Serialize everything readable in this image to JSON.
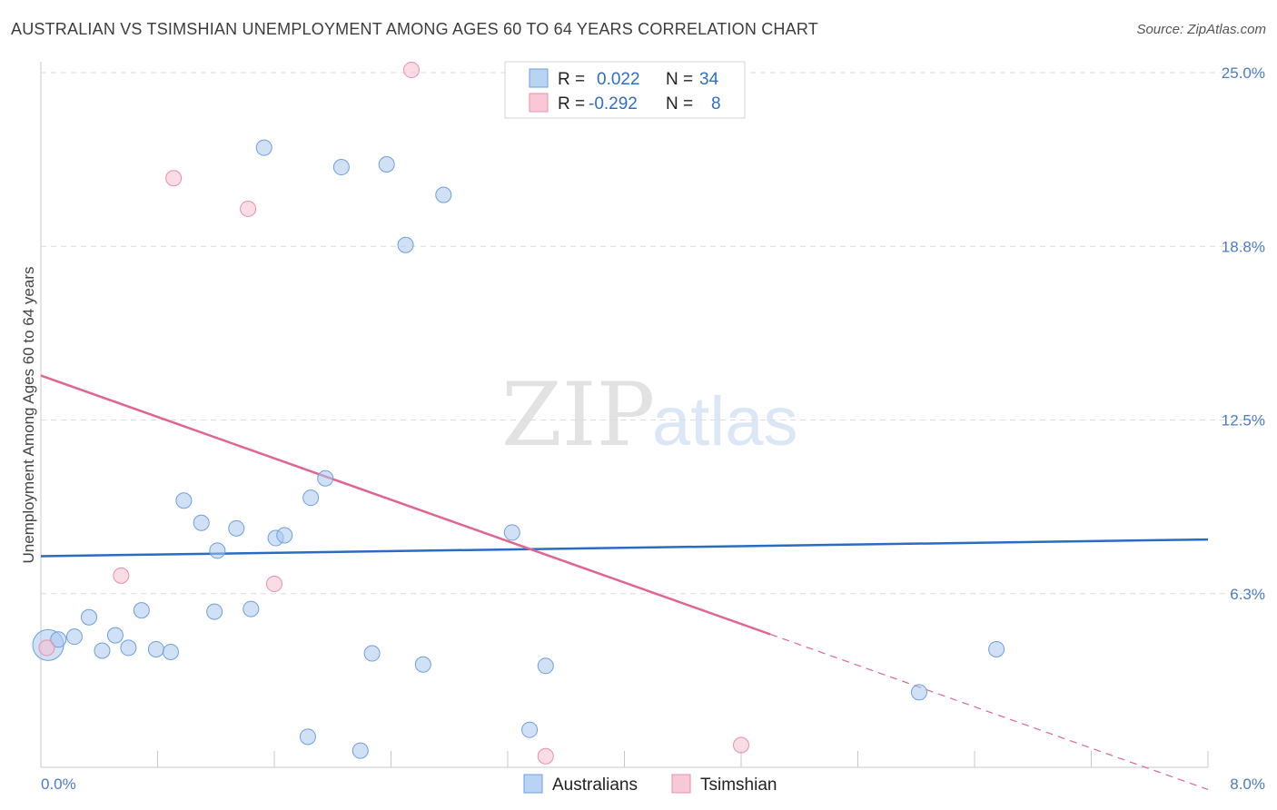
{
  "title": "AUSTRALIAN VS TSIMSHIAN UNEMPLOYMENT AMONG AGES 60 TO 64 YEARS CORRELATION CHART",
  "source": "Source: ZipAtlas.com",
  "watermark": {
    "zip": "ZIP",
    "atlas": "atlas"
  },
  "chart_data": {
    "type": "scatter",
    "title": "AUSTRALIAN VS TSIMSHIAN UNEMPLOYMENT AMONG AGES 60 TO 64 YEARS CORRELATION CHART",
    "xlabel": "",
    "ylabel": "Unemployment Among Ages 60 to 64 years",
    "xlim": [
      0,
      8
    ],
    "ylim": [
      0,
      25
    ],
    "x_tick_labels": [
      "0.0%",
      "8.0%"
    ],
    "y_ticks": [
      6.25,
      12.5,
      18.75,
      25
    ],
    "y_tick_labels": [
      "6.3%",
      "12.5%",
      "18.8%",
      "25.0%"
    ],
    "grid": true,
    "legend_position": "top-center",
    "legend": [
      {
        "name": "Australians",
        "r_label": "R =",
        "r_value": "0.022",
        "n_label": "N =",
        "n_value": "34"
      },
      {
        "name": "Tsimshian",
        "r_label": "R =",
        "r_value": "-0.292",
        "n_label": "N =",
        "n_value": "8"
      }
    ],
    "series": [
      {
        "name": "Australians",
        "color": "#a9c8ef",
        "stroke": "#6f9fdc",
        "trend_color": "#2a6cc4",
        "trend": {
          "x0": 0,
          "y0": 7.6,
          "x1": 8,
          "y1": 8.2,
          "dashed_from": null
        },
        "points": [
          {
            "x": 0.05,
            "y": 4.4,
            "big": true
          },
          {
            "x": 0.12,
            "y": 4.6
          },
          {
            "x": 0.23,
            "y": 4.7
          },
          {
            "x": 0.33,
            "y": 5.4
          },
          {
            "x": 0.42,
            "y": 4.2
          },
          {
            "x": 0.51,
            "y": 4.75
          },
          {
            "x": 0.6,
            "y": 4.3
          },
          {
            "x": 0.69,
            "y": 5.65
          },
          {
            "x": 0.79,
            "y": 4.25
          },
          {
            "x": 0.89,
            "y": 4.15
          },
          {
            "x": 0.98,
            "y": 9.6
          },
          {
            "x": 1.1,
            "y": 8.8
          },
          {
            "x": 1.19,
            "y": 5.6
          },
          {
            "x": 1.21,
            "y": 7.8
          },
          {
            "x": 1.34,
            "y": 8.6
          },
          {
            "x": 1.44,
            "y": 5.7
          },
          {
            "x": 1.53,
            "y": 22.3
          },
          {
            "x": 1.61,
            "y": 8.25
          },
          {
            "x": 1.67,
            "y": 8.35
          },
          {
            "x": 1.83,
            "y": 1.1
          },
          {
            "x": 1.85,
            "y": 9.7
          },
          {
            "x": 1.95,
            "y": 10.4
          },
          {
            "x": 2.06,
            "y": 21.6
          },
          {
            "x": 2.19,
            "y": 0.6
          },
          {
            "x": 2.27,
            "y": 4.1
          },
          {
            "x": 2.37,
            "y": 21.7
          },
          {
            "x": 2.5,
            "y": 18.8
          },
          {
            "x": 2.62,
            "y": 3.7
          },
          {
            "x": 2.76,
            "y": 20.6
          },
          {
            "x": 3.23,
            "y": 8.45
          },
          {
            "x": 3.35,
            "y": 1.35
          },
          {
            "x": 3.46,
            "y": 3.65
          },
          {
            "x": 6.02,
            "y": 2.7
          },
          {
            "x": 6.55,
            "y": 4.25
          }
        ]
      },
      {
        "name": "Tsimshian",
        "color": "#f6bfd0",
        "stroke": "#e88fab",
        "trend_color": "#e0668f",
        "trend": {
          "x0": 0,
          "y0": 14.1,
          "x1": 8,
          "y1": -0.8,
          "dashed_from": 5
        },
        "points": [
          {
            "x": 0.04,
            "y": 4.3
          },
          {
            "x": 0.55,
            "y": 6.9
          },
          {
            "x": 0.91,
            "y": 21.2
          },
          {
            "x": 1.42,
            "y": 20.1
          },
          {
            "x": 1.6,
            "y": 6.6
          },
          {
            "x": 2.54,
            "y": 25.1
          },
          {
            "x": 3.46,
            "y": 0.4
          },
          {
            "x": 4.8,
            "y": 0.8
          }
        ]
      }
    ]
  }
}
